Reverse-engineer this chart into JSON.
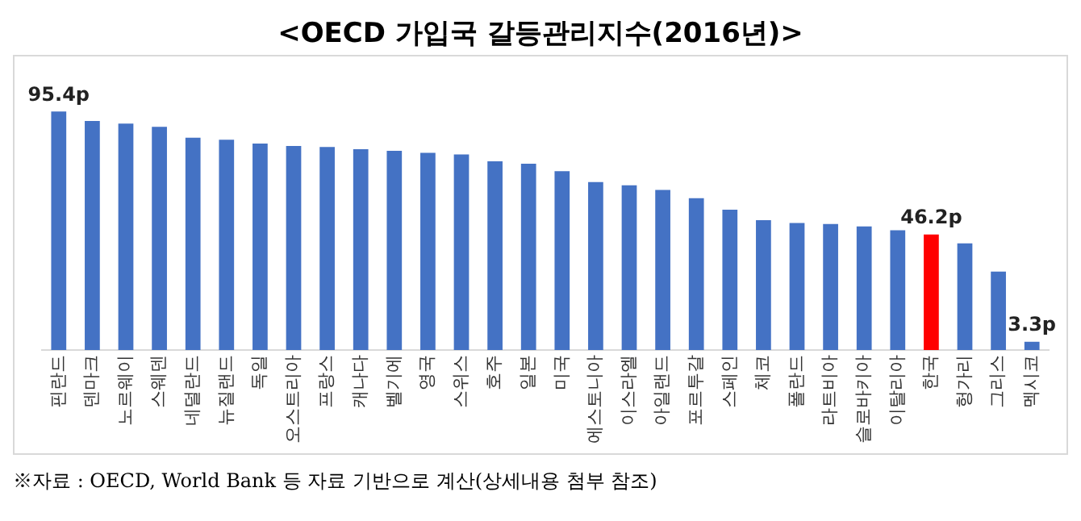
{
  "chart_data": {
    "type": "bar",
    "title": "<OECD 가입국 갈등관리지수(2016년)>",
    "categories": [
      "핀란드",
      "덴마크",
      "노르웨이",
      "스웨덴",
      "네덜란드",
      "뉴질랜드",
      "독일",
      "오스트리아",
      "프랑스",
      "캐나다",
      "벨기에",
      "영국",
      "스위스",
      "호주",
      "일본",
      "미국",
      "에스토니아",
      "이스라엘",
      "아일랜드",
      "포르투갈",
      "스페인",
      "체코",
      "폴란드",
      "라트비아",
      "슬로바키아",
      "이탈리아",
      "한국",
      "헝가리",
      "그리스",
      "멕시코"
    ],
    "values": [
      95.4,
      91.6,
      90.6,
      89.3,
      84.9,
      84.1,
      82.6,
      81.6,
      81.2,
      80.3,
      79.7,
      78.9,
      78.2,
      75.5,
      74.5,
      71.5,
      67.2,
      65.9,
      64.0,
      60.7,
      56.1,
      51.9,
      50.8,
      50.4,
      49.4,
      47.9,
      46.2,
      42.7,
      31.4,
      3.3
    ],
    "value_labels": [
      "95.4p",
      null,
      null,
      null,
      null,
      null,
      null,
      null,
      null,
      null,
      null,
      null,
      null,
      null,
      null,
      null,
      null,
      null,
      null,
      null,
      null,
      null,
      null,
      null,
      null,
      null,
      "46.2p",
      null,
      null,
      "3.3p"
    ],
    "colors": [
      "#4472c4",
      "#4472c4",
      "#4472c4",
      "#4472c4",
      "#4472c4",
      "#4472c4",
      "#4472c4",
      "#4472c4",
      "#4472c4",
      "#4472c4",
      "#4472c4",
      "#4472c4",
      "#4472c4",
      "#4472c4",
      "#4472c4",
      "#4472c4",
      "#4472c4",
      "#4472c4",
      "#4472c4",
      "#4472c4",
      "#4472c4",
      "#4472c4",
      "#4472c4",
      "#4472c4",
      "#4472c4",
      "#4472c4",
      "#ff0000",
      "#4472c4",
      "#4472c4",
      "#4472c4"
    ],
    "grid": false,
    "legend": false,
    "annotations": [
      "※자료 : OECD, World Bank 등 자료 기반으로 계산(상세내용 첨부 참조)"
    ]
  }
}
